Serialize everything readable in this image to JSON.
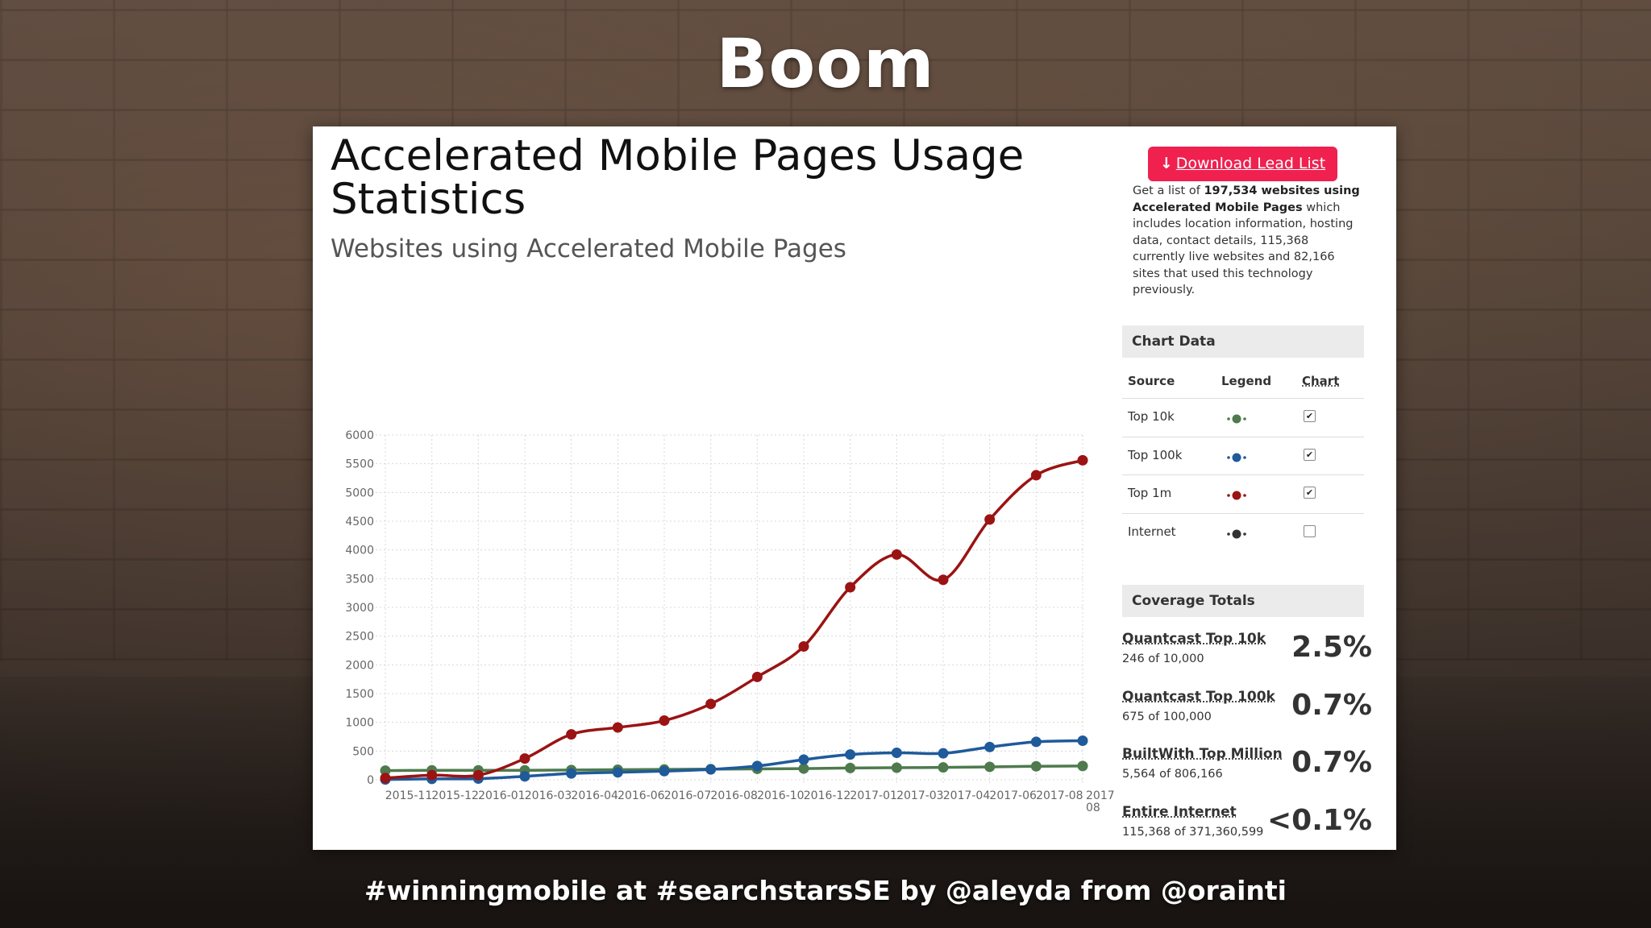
{
  "slide": {
    "title": "Boom",
    "footer": "#winningmobile at #searchstarsSE by @aleyda from @orainti"
  },
  "page": {
    "title_line1": "Accelerated Mobile Pages Usage",
    "title_line2": "Statistics",
    "subtitle": "Websites using Accelerated Mobile Pages"
  },
  "lead": {
    "button_label": "Download Lead List",
    "desc_prefix": "Get a list of ",
    "desc_bold": "197,534 websites using Accelerated Mobile Pages",
    "desc_suffix": " which includes location information, hosting data, contact details, 115,368 currently live websites and 82,166 sites that used this technology previously."
  },
  "chart_panel": {
    "title": "Chart Data",
    "col_source": "Source",
    "col_legend": "Legend",
    "col_chart": "Chart",
    "rows": [
      {
        "source": "Top 10k",
        "color": "#4e7a4e",
        "checked": true
      },
      {
        "source": "Top 100k",
        "color": "#1f5a9a",
        "checked": true
      },
      {
        "source": "Top 1m",
        "color": "#9b1313",
        "checked": true
      },
      {
        "source": "Internet",
        "color": "#333333",
        "checked": false
      }
    ]
  },
  "coverage": {
    "title": "Coverage Totals",
    "items": [
      {
        "name": "Quantcast Top 10k",
        "sub": "246 of 10,000",
        "pct": "2.5%"
      },
      {
        "name": "Quantcast Top 100k",
        "sub": "675 of 100,000",
        "pct": "0.7%"
      },
      {
        "name": "BuiltWith Top Million",
        "sub": "5,564 of 806,166",
        "pct": "0.7%"
      },
      {
        "name": "Entire Internet",
        "sub": "115,368 of 371,360,599",
        "pct": "<0.1%"
      }
    ]
  },
  "chart_data": {
    "type": "line",
    "title": "",
    "xlabel": "",
    "ylabel": "",
    "ylim": [
      0,
      6000
    ],
    "y_ticks": [
      0,
      500,
      1000,
      1500,
      2000,
      2500,
      3000,
      3500,
      4000,
      4500,
      5000,
      5500,
      6000
    ],
    "x_ticks": [
      "2015-11",
      "2015-12",
      "2016-01",
      "2016-03",
      "2016-04",
      "2016-06",
      "2016-07",
      "2016-08",
      "2016-10",
      "2016-12",
      "2017-01",
      "2017-03",
      "2017-04",
      "2017-06",
      "2017-08",
      "2017-08"
    ],
    "x_points": 16,
    "grid": true,
    "legend": "right-panel",
    "series": [
      {
        "name": "Top 10k",
        "color": "#4e7a4e",
        "values": [
          160,
          165,
          165,
          165,
          170,
          175,
          180,
          185,
          190,
          195,
          205,
          210,
          215,
          225,
          235,
          240
        ]
      },
      {
        "name": "Top 100k",
        "color": "#1f5a9a",
        "values": [
          5,
          15,
          20,
          60,
          110,
          130,
          150,
          180,
          240,
          350,
          440,
          470,
          460,
          570,
          660,
          680
        ]
      },
      {
        "name": "Top 1m",
        "color": "#9b1313",
        "values": [
          30,
          80,
          80,
          370,
          790,
          910,
          1030,
          1320,
          1790,
          2320,
          3350,
          3920,
          3480,
          4530,
          5300,
          5560
        ]
      }
    ]
  }
}
